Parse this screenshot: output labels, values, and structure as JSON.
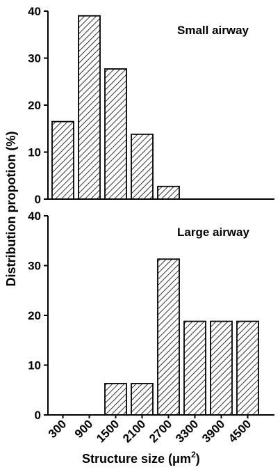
{
  "chart_data": [
    {
      "type": "bar",
      "title": "Small airway",
      "categories": [
        "300",
        "900",
        "1500",
        "2100",
        "2700",
        "3300",
        "3900",
        "4500"
      ],
      "values": [
        16.5,
        39,
        27.7,
        13.8,
        2.7,
        0,
        0,
        0
      ],
      "ylim": [
        0,
        40
      ],
      "yticks": [
        "0",
        "10",
        "20",
        "30",
        "40"
      ],
      "pattern": "diagonal-hatch"
    },
    {
      "type": "bar",
      "title": "Large airway",
      "categories": [
        "300",
        "900",
        "1500",
        "2100",
        "2700",
        "3300",
        "3900",
        "4500"
      ],
      "values": [
        0,
        0,
        6.3,
        6.3,
        31.3,
        18.8,
        18.8,
        18.8
      ],
      "ylim": [
        0,
        40
      ],
      "yticks": [
        "0",
        "10",
        "20",
        "30",
        "40"
      ],
      "xticks": [
        "300",
        "900",
        "1500",
        "2100",
        "2700",
        "3300",
        "3900",
        "4500"
      ],
      "pattern": "diagonal-hatch"
    }
  ],
  "labels": {
    "ylabel": "Distribution propotion (%)",
    "xlabel_main": "Structure  size (",
    "xlabel_unit": "μm",
    "xlabel_sup": "2",
    "xlabel_close": ")"
  }
}
